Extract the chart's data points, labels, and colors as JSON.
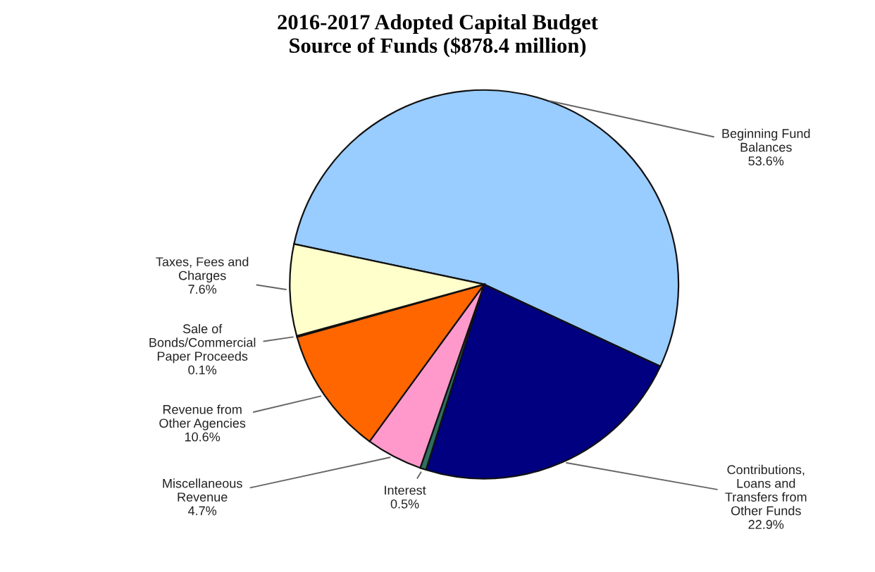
{
  "chart_data": {
    "type": "pie",
    "title": "2016-2017 Adopted Capital Budget\nSource of Funds ($878.4 million)",
    "categories": [
      "Beginning Fund\nBalances",
      "Contributions,\nLoans and\nTransfers from\nOther Funds",
      "Interest",
      "Miscellaneous\nRevenue",
      "Revenue from\nOther Agencies",
      "Sale of\nBonds/Commercial\nPaper Proceeds",
      "Taxes, Fees and\nCharges"
    ],
    "values": [
      53.6,
      22.9,
      0.5,
      4.7,
      10.6,
      0.1,
      7.6
    ],
    "colors": [
      "#99ccff",
      "#000080",
      "#2f6f5f",
      "#ff99cc",
      "#ff6600",
      "#333333",
      "#ffffcc"
    ],
    "value_labels": [
      "53.6%",
      "22.9%",
      "0.5%",
      "4.7%",
      "10.6%",
      "0.1%",
      "7.6%"
    ],
    "legend": false
  }
}
